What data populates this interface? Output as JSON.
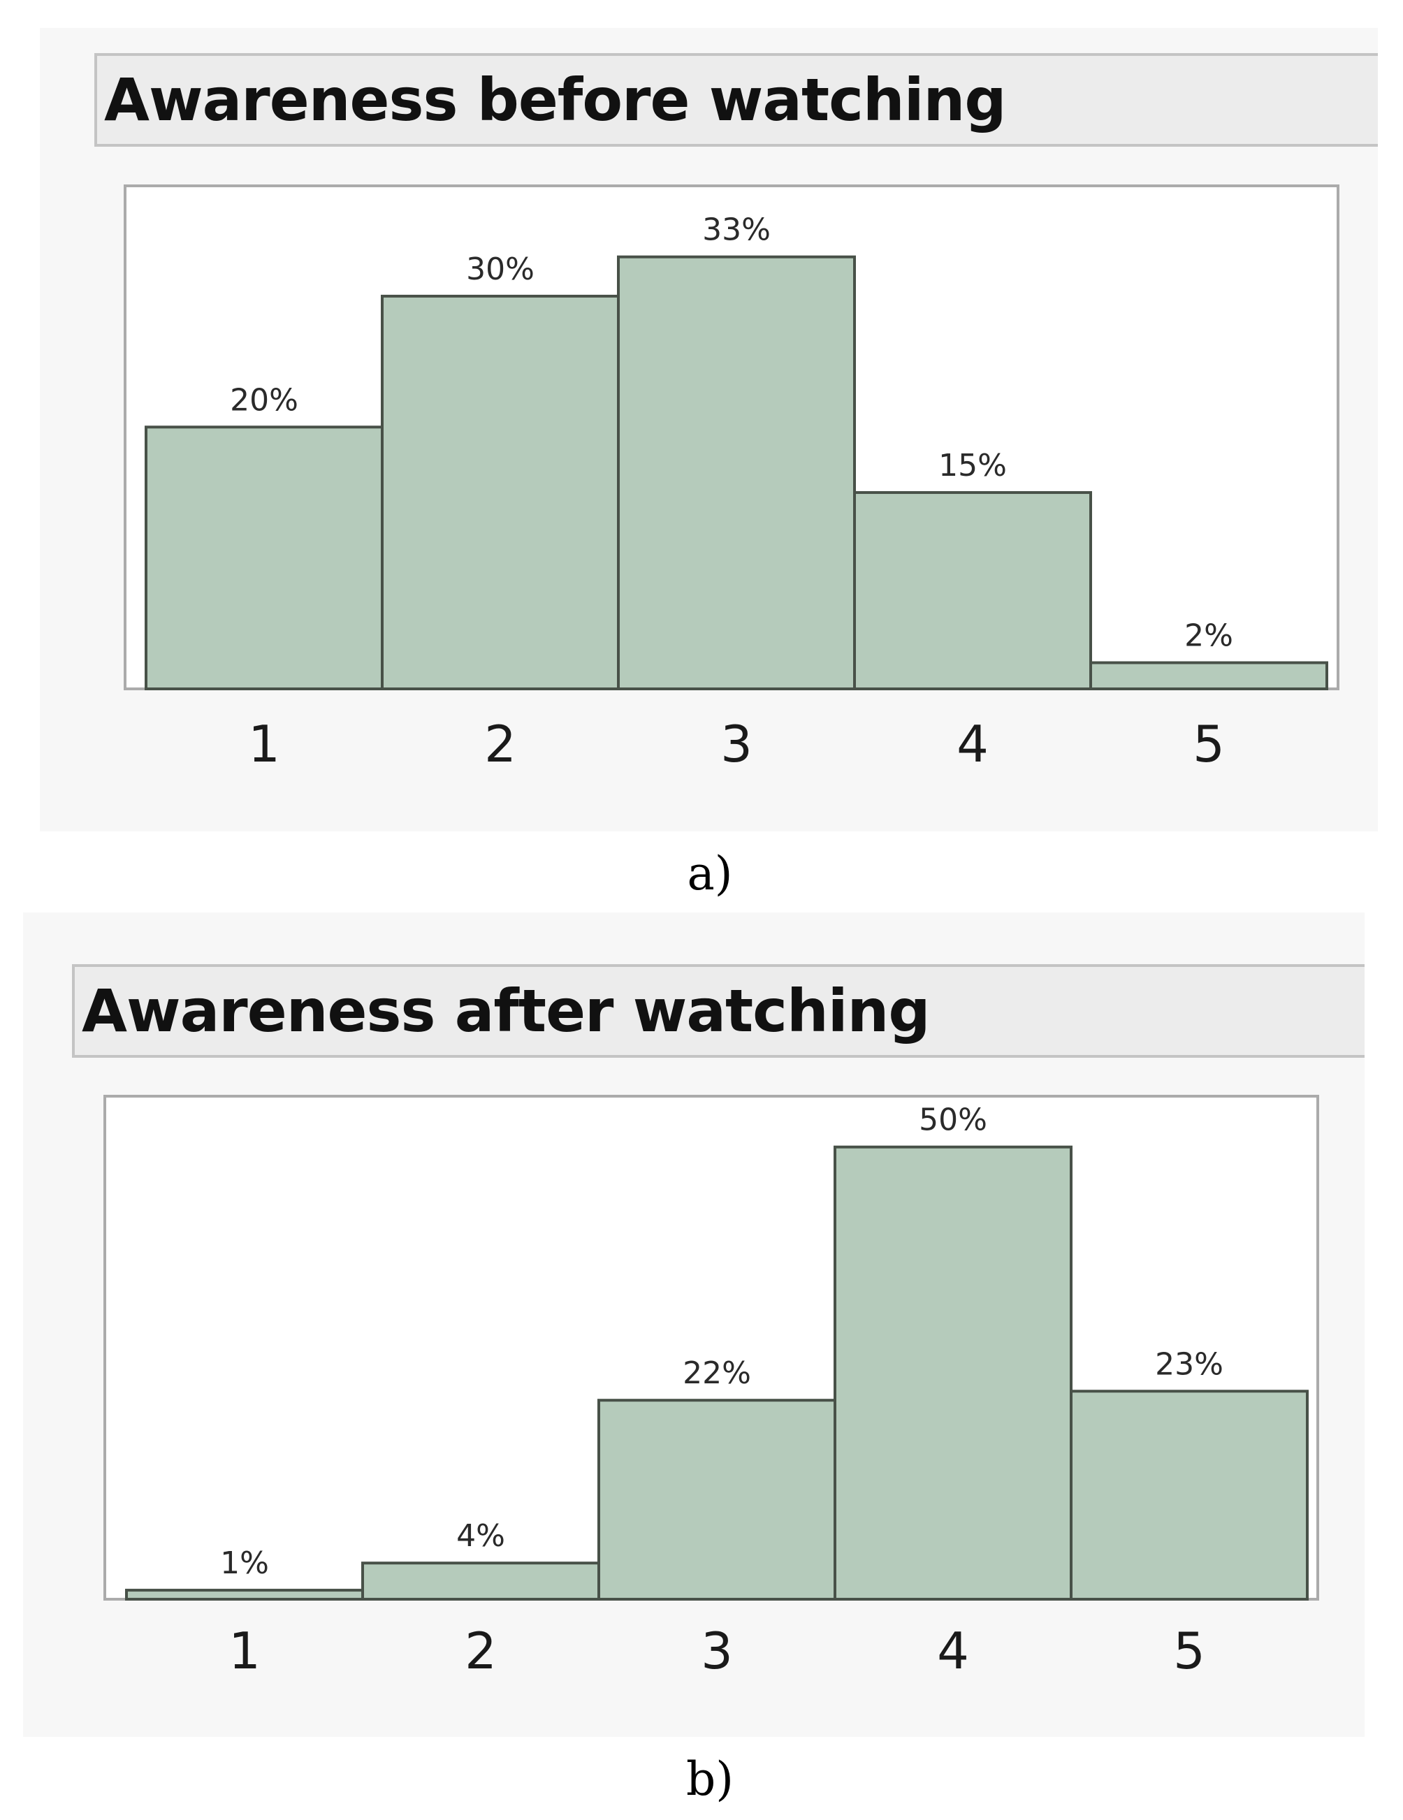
{
  "colors": {
    "bar_fill": "#b5cbbb",
    "bar_stroke": "#485148",
    "plot_border": "#ababab",
    "panel_bg": "#f7f7f7",
    "header_bg": "#ececec"
  },
  "chart_data": [
    {
      "type": "bar",
      "title": "Awareness before watching",
      "categories": [
        "1",
        "2",
        "3",
        "4",
        "5"
      ],
      "values": [
        20,
        30,
        33,
        15,
        2
      ],
      "value_labels": [
        "20%",
        "30%",
        "33%",
        "15%",
        "2%"
      ],
      "ylim": [
        0,
        38
      ],
      "caption": "a)"
    },
    {
      "type": "bar",
      "title": "Awareness after watching",
      "categories": [
        "1",
        "2",
        "3",
        "4",
        "5"
      ],
      "values": [
        1,
        4,
        22,
        50,
        23
      ],
      "value_labels": [
        "1%",
        "4%",
        "22%",
        "50%",
        "23%"
      ],
      "ylim": [
        0,
        55
      ],
      "caption": "b)"
    }
  ]
}
